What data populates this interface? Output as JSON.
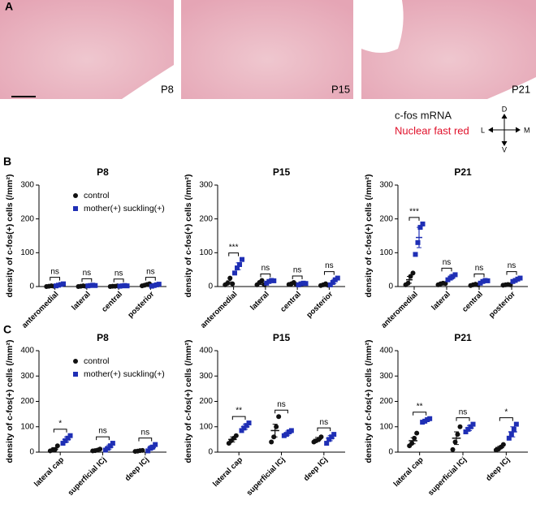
{
  "panels": {
    "a": "A",
    "b": "B",
    "c": "C"
  },
  "panel_a": {
    "images": [
      "P8",
      "P15",
      "P21"
    ],
    "legend": [
      "c-fos mRNA",
      "Nuclear fast red"
    ],
    "compass": [
      "D",
      "V",
      "L",
      "M"
    ]
  },
  "chart_data": [
    {
      "type": "dot",
      "title": "P8",
      "ylabel": "density of c-fos(+) cells (/mm²)",
      "categories": [
        "anteromedial",
        "lateral",
        "central",
        "posterior"
      ],
      "ylim": [
        0,
        300
      ],
      "yticks": [
        0,
        100,
        200,
        300
      ],
      "legend": "upper left",
      "annotations": [
        "ns",
        "ns",
        "ns",
        "ns"
      ],
      "series": [
        {
          "name": "control",
          "color": "#111111",
          "values": [
            1,
            1,
            1,
            5
          ],
          "errors": [
            1,
            1,
            1,
            2
          ],
          "points": [
            [
              0,
              1,
              2,
              1
            ],
            [
              0,
              1,
              2,
              1
            ],
            [
              0,
              1,
              1,
              2
            ],
            [
              2,
              4,
              6,
              8
            ]
          ]
        },
        {
          "name": "mother(+) suckling(+)",
          "color": "#1f2fb5",
          "values": [
            5,
            3,
            2,
            4
          ],
          "errors": [
            2,
            1,
            1,
            2
          ],
          "points": [
            [
              2,
              4,
              6,
              8
            ],
            [
              2,
              3,
              4,
              3
            ],
            [
              1,
              2,
              3,
              2
            ],
            [
              1,
              3,
              5,
              7
            ]
          ]
        }
      ]
    },
    {
      "type": "dot",
      "title": "P15",
      "ylabel": "density of c-fos(+) cells (/mm²)",
      "categories": [
        "anteromedial",
        "lateral",
        "central",
        "posterior"
      ],
      "ylim": [
        0,
        300
      ],
      "yticks": [
        0,
        100,
        200,
        300
      ],
      "annotations": [
        "***",
        "ns",
        "ns",
        "ns"
      ],
      "series": [
        {
          "color": "#111111",
          "values": [
            12,
            10,
            8,
            5
          ],
          "errors": [
            5,
            4,
            2,
            2
          ],
          "points": [
            [
              5,
              10,
              25,
              8
            ],
            [
              5,
              12,
              18,
              5
            ],
            [
              6,
              8,
              12,
              6
            ],
            [
              3,
              5,
              8,
              4
            ]
          ]
        },
        {
          "color": "#1f2fb5",
          "values": [
            60,
            15,
            8,
            15
          ],
          "errors": [
            10,
            3,
            3,
            6
          ],
          "points": [
            [
              40,
              55,
              65,
              80
            ],
            [
              10,
              15,
              18,
              17
            ],
            [
              5,
              8,
              10,
              9
            ],
            [
              5,
              12,
              20,
              25
            ]
          ]
        }
      ]
    },
    {
      "type": "dot",
      "title": "P21",
      "ylabel": "density of c-fos(+) cells (/mm²)",
      "categories": [
        "anteromedial",
        "lateral",
        "central",
        "posterior"
      ],
      "ylim": [
        0,
        300
      ],
      "yticks": [
        0,
        100,
        200,
        300
      ],
      "annotations": [
        "***",
        "ns",
        "ns",
        "ns"
      ],
      "series": [
        {
          "color": "#111111",
          "values": [
            20,
            8,
            5,
            5
          ],
          "errors": [
            10,
            3,
            2,
            1
          ],
          "points": [
            [
              5,
              10,
              30,
              40
            ],
            [
              5,
              8,
              10,
              9
            ],
            [
              3,
              5,
              7,
              5
            ],
            [
              4,
              5,
              6,
              5
            ]
          ]
        },
        {
          "color": "#1f2fb5",
          "values": [
            145,
            28,
            15,
            20
          ],
          "errors": [
            30,
            6,
            3,
            3
          ],
          "points": [
            [
              95,
              130,
              175,
              185
            ],
            [
              20,
              25,
              30,
              35
            ],
            [
              10,
              15,
              18,
              17
            ],
            [
              15,
              18,
              22,
              25
            ]
          ]
        }
      ]
    },
    {
      "type": "dot",
      "title": "P8",
      "ylabel": "density of c-fos(+) cells (/mm²)",
      "categories": [
        "lateral cap",
        "superficial ICj",
        "deep ICj"
      ],
      "ylim": [
        0,
        400
      ],
      "yticks": [
        0,
        100,
        200,
        300,
        400
      ],
      "legend": "upper left",
      "annotations": [
        "*",
        "ns",
        "ns"
      ],
      "series": [
        {
          "name": "control",
          "color": "#111111",
          "values": [
            12,
            8,
            5
          ],
          "errors": [
            6,
            3,
            2
          ],
          "points": [
            [
              5,
              8,
              10,
              25
            ],
            [
              5,
              6,
              8,
              12
            ],
            [
              3,
              4,
              6,
              7
            ]
          ]
        },
        {
          "name": "mother(+) suckling(+)",
          "color": "#1f2fb5",
          "values": [
            50,
            20,
            18
          ],
          "errors": [
            10,
            8,
            8
          ],
          "points": [
            [
              35,
              45,
              55,
              65
            ],
            [
              8,
              15,
              25,
              35
            ],
            [
              5,
              15,
              20,
              30
            ]
          ]
        }
      ]
    },
    {
      "type": "dot",
      "title": "P15",
      "ylabel": "density of c-fos(+) cells (/mm²)",
      "categories": [
        "lateral cap",
        "superficial ICj",
        "deep ICj"
      ],
      "ylim": [
        0,
        400
      ],
      "yticks": [
        0,
        100,
        200,
        300,
        400
      ],
      "annotations": [
        "**",
        "ns",
        "ns"
      ],
      "series": [
        {
          "color": "#111111",
          "values": [
            50,
            85,
            50
          ],
          "errors": [
            10,
            25,
            8
          ],
          "points": [
            [
              35,
              45,
              55,
              65
            ],
            [
              40,
              60,
              100,
              140
            ],
            [
              40,
              45,
              50,
              60
            ]
          ]
        },
        {
          "color": "#1f2fb5",
          "values": [
            100,
            75,
            55
          ],
          "errors": [
            10,
            8,
            10
          ],
          "points": [
            [
              85,
              95,
              105,
              115
            ],
            [
              65,
              70,
              80,
              85
            ],
            [
              35,
              50,
              60,
              70
            ]
          ]
        }
      ]
    },
    {
      "type": "dot",
      "title": "P21",
      "ylabel": "density of c-fos(+) cells (/mm²)",
      "categories": [
        "lateral cap",
        "superficial ICj",
        "deep ICj"
      ],
      "ylim": [
        0,
        400
      ],
      "yticks": [
        0,
        100,
        200,
        300,
        400
      ],
      "annotations": [
        "**",
        "ns",
        "*"
      ],
      "series": [
        {
          "color": "#111111",
          "values": [
            45,
            55,
            18
          ],
          "errors": [
            12,
            25,
            5
          ],
          "points": [
            [
              25,
              35,
              55,
              75
            ],
            [
              10,
              40,
              70,
              100
            ],
            [
              8,
              12,
              20,
              30
            ]
          ]
        },
        {
          "color": "#1f2fb5",
          "values": [
            125,
            95,
            80
          ],
          "errors": [
            5,
            10,
            20
          ],
          "points": [
            [
              118,
              122,
              128,
              132
            ],
            [
              80,
              90,
              100,
              110
            ],
            [
              55,
              70,
              90,
              110
            ]
          ]
        }
      ]
    }
  ]
}
